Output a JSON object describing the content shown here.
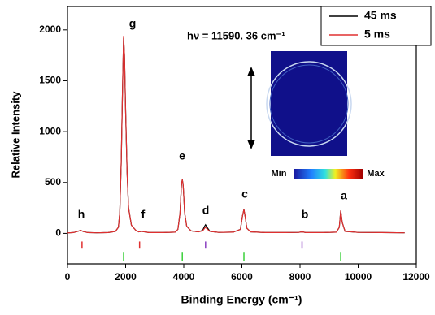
{
  "chart_data": {
    "type": "line",
    "xlabel": "Binding Energy (cm⁻¹)",
    "ylabel": "Relative Intensity",
    "xlim": [
      0,
      12000
    ],
    "xticks": [
      0,
      2000,
      4000,
      6000,
      8000,
      10000,
      12000
    ],
    "ylim": [
      -300,
      2230
    ],
    "yticks": [
      0,
      500,
      1000,
      1500,
      2000
    ],
    "x": [
      0,
      200,
      350,
      450,
      550,
      700,
      1000,
      1400,
      1650,
      1750,
      1800,
      1850,
      1900,
      1930,
      1960,
      2000,
      2050,
      2100,
      2200,
      2350,
      2450,
      2550,
      2800,
      3300,
      3700,
      3800,
      3870,
      3920,
      3950,
      3980,
      4030,
      4100,
      4250,
      4500,
      4650,
      4720,
      4750,
      4800,
      4900,
      5200,
      5700,
      5950,
      6020,
      6070,
      6110,
      6170,
      6300,
      6800,
      7500,
      7950,
      8070,
      8200,
      8800,
      9250,
      9350,
      9400,
      9450,
      9550,
      10000,
      10800,
      11600
    ],
    "series": [
      {
        "name": "45 ms",
        "color": "#000000",
        "values": [
          5,
          8,
          20,
          30,
          18,
          8,
          6,
          8,
          20,
          60,
          200,
          700,
          1500,
          1920,
          1750,
          1200,
          600,
          250,
          80,
          30,
          15,
          20,
          8,
          8,
          12,
          40,
          200,
          470,
          530,
          470,
          200,
          70,
          25,
          15,
          30,
          70,
          85,
          60,
          20,
          10,
          12,
          40,
          170,
          235,
          170,
          50,
          15,
          8,
          8,
          10,
          15,
          8,
          8,
          12,
          60,
          225,
          110,
          20,
          10,
          8,
          6
        ]
      },
      {
        "name": "5 ms",
        "color": "#e03030",
        "values": [
          5,
          8,
          20,
          30,
          18,
          8,
          6,
          8,
          20,
          60,
          200,
          700,
          1500,
          1940,
          1750,
          1200,
          600,
          250,
          80,
          30,
          15,
          20,
          8,
          8,
          12,
          40,
          200,
          470,
          530,
          470,
          200,
          70,
          25,
          15,
          25,
          50,
          60,
          45,
          20,
          10,
          12,
          40,
          170,
          235,
          170,
          50,
          15,
          8,
          8,
          10,
          15,
          8,
          8,
          12,
          60,
          225,
          110,
          20,
          10,
          8,
          6
        ]
      }
    ],
    "markers": [
      {
        "color": "#e03030",
        "x": [
          500,
          2480
        ],
        "span": [
          -80,
          -150
        ]
      },
      {
        "color": "#8a3fc0",
        "x": [
          4750,
          8070
        ],
        "span": [
          -80,
          -150
        ]
      },
      {
        "color": "#3ad03a",
        "x": [
          1930,
          3950,
          6070,
          9400
        ],
        "span": [
          -190,
          -270
        ]
      }
    ],
    "peak_labels": [
      "a",
      "b",
      "c",
      "d",
      "e",
      "f",
      "g",
      "h"
    ],
    "annotation": "hν = 11590. 36 cm⁻¹",
    "colorbar": [
      "Min",
      "Max"
    ]
  }
}
